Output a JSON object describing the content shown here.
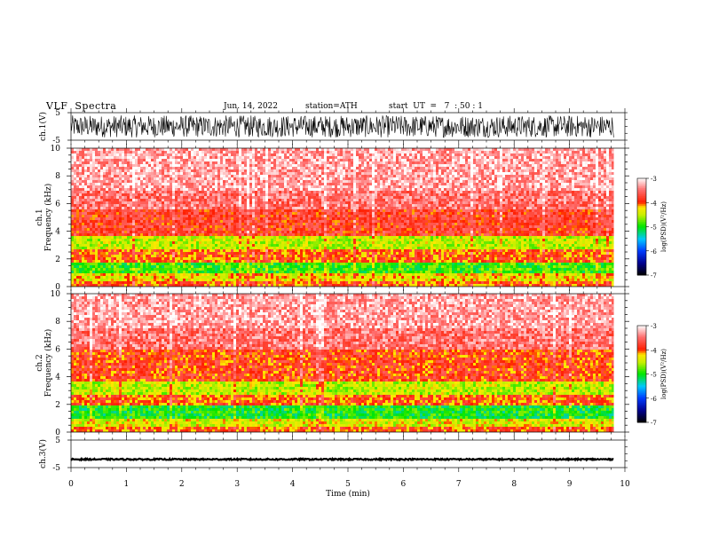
{
  "header": {
    "title": "VLF  Spectra",
    "date": "Jun. 14, 2022",
    "station": "station=ATH",
    "start": "start  UT  =   7  : 50 : 1"
  },
  "chart_data": [
    {
      "type": "line",
      "panel": "ch1-waveform",
      "ylabel": "ch.1(V)",
      "ylim": [
        -5,
        5
      ],
      "yticks": [
        "5",
        "-5"
      ],
      "xlim": [
        0,
        10
      ],
      "series": [
        {
          "description_values": "dense noise oscillating roughly between -4 and 4 V over 0–9.8 min",
          "x": [
            0,
            9.8
          ],
          "amplitude": 4
        }
      ]
    },
    {
      "type": "heatmap",
      "panel": "ch1-spectrogram",
      "ylabel": "ch.1\nFrequency (kHz)",
      "ylim": [
        0,
        10
      ],
      "yticks": [
        "0",
        "2",
        "4",
        "6",
        "8",
        "10"
      ],
      "xlim": [
        0,
        10
      ],
      "data_end_min": 9.8,
      "colorbar": {
        "label": "log(PSD)(V²/Hz)",
        "range": [
          -7,
          -3
        ],
        "ticks": [
          "-3",
          "-4",
          "-5",
          "-6",
          "-7"
        ]
      },
      "bands_khz_logpsd": [
        {
          "from": 0.0,
          "to": 0.3,
          "level": -4.0
        },
        {
          "from": 0.3,
          "to": 1.0,
          "level": -4.3
        },
        {
          "from": 1.0,
          "to": 1.8,
          "level": -4.9
        },
        {
          "from": 1.8,
          "to": 2.6,
          "level": -4.0
        },
        {
          "from": 2.6,
          "to": 3.6,
          "level": -4.5
        },
        {
          "from": 3.6,
          "to": 5.5,
          "level": -3.8
        },
        {
          "from": 5.5,
          "to": 7.0,
          "level": -3.5
        },
        {
          "from": 7.0,
          "to": 10.0,
          "level": -3.3
        }
      ]
    },
    {
      "type": "heatmap",
      "panel": "ch2-spectrogram",
      "ylabel": "ch.2\nFrequency (kHz)",
      "ylim": [
        0,
        10
      ],
      "yticks": [
        "0",
        "2",
        "4",
        "6",
        "8",
        "10"
      ],
      "xlim": [
        0,
        10
      ],
      "data_end_min": 9.8,
      "colorbar": {
        "label": "log(PSD)(V²/Hz)",
        "range": [
          -7,
          -3
        ],
        "ticks": [
          "-3",
          "-4",
          "-5",
          "-6",
          "-7"
        ]
      },
      "bands_khz_logpsd": [
        {
          "from": 0.0,
          "to": 0.3,
          "level": -4.0
        },
        {
          "from": 0.3,
          "to": 1.0,
          "level": -4.4
        },
        {
          "from": 1.0,
          "to": 1.9,
          "level": -5.0
        },
        {
          "from": 1.9,
          "to": 2.6,
          "level": -4.0
        },
        {
          "from": 2.6,
          "to": 3.6,
          "level": -4.5
        },
        {
          "from": 3.6,
          "to": 6.0,
          "level": -3.9
        },
        {
          "from": 6.0,
          "to": 7.5,
          "level": -3.5
        },
        {
          "from": 7.5,
          "to": 10.0,
          "level": -3.3
        }
      ]
    },
    {
      "type": "line",
      "panel": "ch3-waveform",
      "ylabel": "ch.3(V)",
      "ylim": [
        -5,
        5
      ],
      "yticks": [
        "5",
        "-5"
      ],
      "xlim": [
        0,
        10
      ],
      "xticks": [
        "0",
        "1",
        "2",
        "3",
        "4",
        "5",
        "6",
        "7",
        "8",
        "9",
        "10"
      ],
      "xlabel": "Time  (min)",
      "series": [
        {
          "description_values": "nearly flat trace near -2 V with small noise over 0–9.8 min",
          "x": [
            0,
            9.8
          ],
          "mean": -2.0,
          "amplitude": 0.25
        }
      ]
    }
  ]
}
